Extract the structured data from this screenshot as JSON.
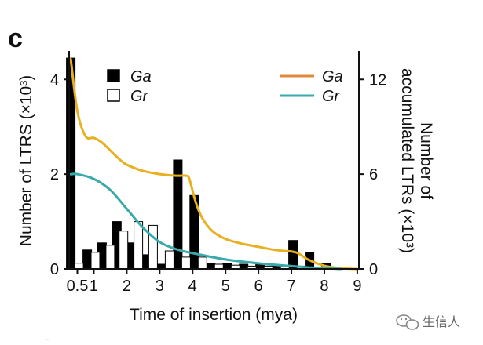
{
  "panel_label": "c",
  "watermark": {
    "text": "生信人",
    "icon": "wechat-icon"
  },
  "footer_mark": "-",
  "chart_data": {
    "type": "bar+line",
    "xlabel": "Time of insertion (mya)",
    "ylabel_left": "Number of LTRS (×10³)",
    "ylabel_right_lines": [
      "Number of",
      "accumulated LTRs (×10³)"
    ],
    "xlim": [
      0.25,
      9.05
    ],
    "ylim_left": [
      0,
      4.6
    ],
    "ylim_right": [
      0,
      13.8
    ],
    "x_ticks": [
      {
        "value": 0.5,
        "label": "0.5"
      },
      {
        "value": 1,
        "label": "1"
      },
      {
        "value": 2,
        "label": "2"
      },
      {
        "value": 3,
        "label": "3"
      },
      {
        "value": 4,
        "label": "4"
      },
      {
        "value": 5,
        "label": "5"
      },
      {
        "value": 6,
        "label": "6"
      },
      {
        "value": 7,
        "label": "7"
      },
      {
        "value": 8,
        "label": "8"
      },
      {
        "value": 9,
        "label": "9"
      }
    ],
    "y_left_ticks": [
      {
        "value": 0,
        "label": "0"
      },
      {
        "value": 2,
        "label": "2"
      },
      {
        "value": 4,
        "label": "4"
      }
    ],
    "y_right_ticks": [
      {
        "value": 0,
        "label": "0"
      },
      {
        "value": 6,
        "label": "6"
      },
      {
        "value": 12,
        "label": "12"
      }
    ],
    "bar_series": [
      {
        "name": "Ga",
        "fill": "#000000",
        "x": [
          0.3,
          0.8,
          1.25,
          1.7,
          2.1,
          2.55,
          3.05,
          3.55,
          4.05,
          4.55,
          5.05,
          5.55,
          6.05,
          6.55,
          7.05,
          7.55,
          8.05
        ],
        "values": [
          4.45,
          0.4,
          0.55,
          1.0,
          0.55,
          0.3,
          0.1,
          2.3,
          1.55,
          0.12,
          0.12,
          0.1,
          0.1,
          0.08,
          0.6,
          0.35,
          0.12
        ]
      },
      {
        "name": "Gr",
        "fill": "#ffffff",
        "x": [
          0.55,
          1.05,
          1.5,
          1.9,
          2.35,
          2.8,
          3.3,
          3.8,
          4.3,
          4.8,
          5.3,
          5.8,
          6.3,
          6.8,
          7.3,
          7.8
        ],
        "values": [
          0.12,
          0.35,
          0.5,
          0.8,
          1.0,
          0.92,
          0.38,
          0.25,
          0.25,
          0.1,
          0.08,
          0.06,
          0.06,
          0.05,
          0.06,
          0.04
        ]
      }
    ],
    "line_series": [
      {
        "name": "Ga",
        "color": "#e8b020",
        "axis": "right",
        "x": [
          0.3,
          0.5,
          0.75,
          1.0,
          1.25,
          1.5,
          1.75,
          2.0,
          2.5,
          3.0,
          3.5,
          3.8,
          3.9,
          4.1,
          4.3,
          4.6,
          5.0,
          5.5,
          6.0,
          6.5,
          7.0,
          7.2,
          7.5,
          8.0,
          8.5,
          9.0
        ],
        "values": [
          13.3,
          10.0,
          8.4,
          8.3,
          8.0,
          7.5,
          7.0,
          6.6,
          6.2,
          6.0,
          5.9,
          5.9,
          5.7,
          4.2,
          3.2,
          2.4,
          1.9,
          1.6,
          1.4,
          1.2,
          1.1,
          1.0,
          0.6,
          0.2,
          0.05,
          0.0
        ]
      },
      {
        "name": "Gr",
        "color": "#3aa9a9",
        "axis": "right",
        "x": [
          0.3,
          0.5,
          1.0,
          1.5,
          2.0,
          2.5,
          3.0,
          3.5,
          4.0,
          5.0,
          6.0,
          7.0,
          7.5,
          8.0,
          8.5
        ],
        "values": [
          5.99,
          6.0,
          5.7,
          5.0,
          3.8,
          2.6,
          1.7,
          1.25,
          1.0,
          0.6,
          0.35,
          0.18,
          0.1,
          0.05,
          0.0
        ]
      }
    ],
    "legend_bars": [
      {
        "label": "Ga",
        "swatch": "filled",
        "fill": "#000000"
      },
      {
        "label": "Gr",
        "swatch": "hollow",
        "fill": "#ffffff"
      }
    ],
    "legend_lines": [
      {
        "label": "Ga",
        "color": "#e08a3a"
      },
      {
        "label": "Gr",
        "color": "#3aa9a9"
      }
    ],
    "legend_bars_position": "top-left",
    "legend_lines_position": "top-right"
  }
}
